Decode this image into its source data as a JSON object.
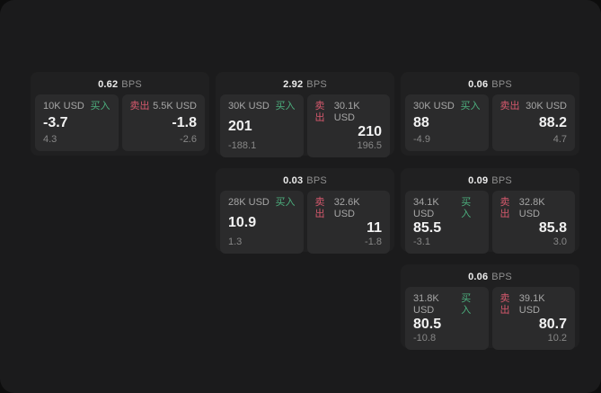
{
  "labels": {
    "bps_suffix": "BPS",
    "buy": "买入",
    "sell": "卖出"
  },
  "colors": {
    "buy_green": "#4caf7e",
    "sell_red": "#d6596d",
    "card_bg": "#202021",
    "panel_bg": "#2b2b2c",
    "screen_bg": "#1b1b1c"
  },
  "cards": [
    {
      "bps": "0.62",
      "buy": {
        "amount": "10K USD",
        "price": "-3.7",
        "change": "4.3"
      },
      "sell": {
        "amount": "5.5K USD",
        "price": "-1.8",
        "change": "-2.6"
      }
    },
    {
      "bps": "2.92",
      "buy": {
        "amount": "30K USD",
        "price": "201",
        "change": "-188.1"
      },
      "sell": {
        "amount": "30.1K USD",
        "price": "210",
        "change": "196.5"
      }
    },
    {
      "bps": "0.06",
      "buy": {
        "amount": "30K USD",
        "price": "88",
        "change": "-4.9"
      },
      "sell": {
        "amount": "30K USD",
        "price": "88.2",
        "change": "4.7"
      }
    },
    {
      "bps": "0.03",
      "buy": {
        "amount": "28K USD",
        "price": "10.9",
        "change": "1.3"
      },
      "sell": {
        "amount": "32.6K USD",
        "price": "11",
        "change": "-1.8"
      }
    },
    {
      "bps": "0.09",
      "buy": {
        "amount": "34.1K USD",
        "price": "85.5",
        "change": "-3.1"
      },
      "sell": {
        "amount": "32.8K USD",
        "price": "85.8",
        "change": "3.0"
      }
    },
    {
      "bps": "0.06",
      "buy": {
        "amount": "31.8K USD",
        "price": "80.5",
        "change": "-10.8"
      },
      "sell": {
        "amount": "39.1K USD",
        "price": "80.7",
        "change": "10.2"
      }
    }
  ]
}
